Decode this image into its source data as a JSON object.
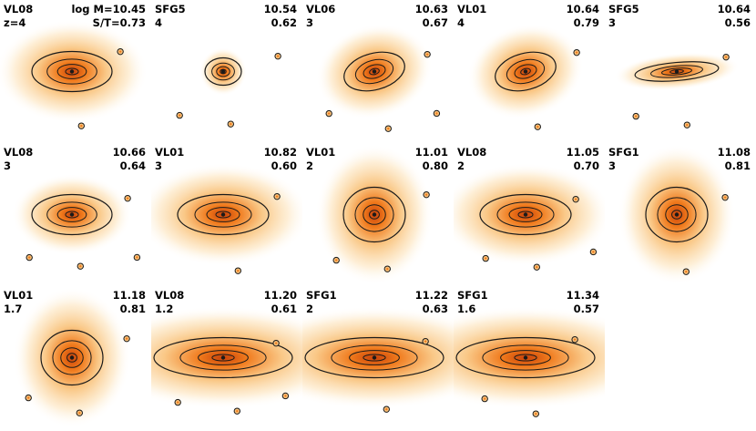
{
  "figure": {
    "panels": [
      {
        "id": "VL08",
        "param_top": "log M=10.45",
        "row2_left": "z=4",
        "row2_right": "S/T=0.73",
        "shape": "ellipse",
        "halo": "broad"
      },
      {
        "id": "SFG5",
        "param_top": "10.54",
        "row2_left": "4",
        "row2_right": "0.62",
        "shape": "compact",
        "halo": "small"
      },
      {
        "id": "VL06",
        "param_top": "10.63",
        "row2_left": "3",
        "row2_right": "0.67",
        "shape": "tilted",
        "halo": "broad"
      },
      {
        "id": "VL01",
        "param_top": "10.64",
        "row2_left": "4",
        "row2_right": "0.79",
        "shape": "tilted",
        "halo": "broad"
      },
      {
        "id": "SFG5",
        "param_top": "10.64",
        "row2_left": "3",
        "row2_right": "0.56",
        "shape": "thin-disk",
        "halo": "medium"
      },
      {
        "id": "VL08",
        "param_top": "10.66",
        "row2_left": "3",
        "row2_right": "0.64",
        "shape": "ellipse",
        "halo": "medium"
      },
      {
        "id": "VL01",
        "param_top": "10.82",
        "row2_left": "3",
        "row2_right": "0.60",
        "shape": "wide-ellipse",
        "halo": "broad"
      },
      {
        "id": "VL01",
        "param_top": "11.01",
        "row2_left": "2",
        "row2_right": "0.80",
        "shape": "round",
        "halo": "broad"
      },
      {
        "id": "VL08",
        "param_top": "11.05",
        "row2_left": "2",
        "row2_right": "0.70",
        "shape": "wide-ellipse",
        "halo": "broad"
      },
      {
        "id": "SFG1",
        "param_top": "11.08",
        "row2_left": "3",
        "row2_right": "0.81",
        "shape": "round",
        "halo": "broad"
      },
      {
        "id": "VL01",
        "param_top": "11.18",
        "row2_left": "1.7",
        "row2_right": "0.81",
        "shape": "round",
        "halo": "broad"
      },
      {
        "id": "VL08",
        "param_top": "11.20",
        "row2_left": "1.2",
        "row2_right": "0.61",
        "shape": "disk",
        "halo": "broad"
      },
      {
        "id": "SFG1",
        "param_top": "11.22",
        "row2_left": "2",
        "row2_right": "0.63",
        "shape": "disk",
        "halo": "broad"
      },
      {
        "id": "SFG1",
        "param_top": "11.34",
        "row2_left": "1.6",
        "row2_right": "0.57",
        "shape": "disk",
        "halo": "broad"
      }
    ]
  },
  "colors": {
    "halo_outer": "#fde8c6",
    "halo_mid": "#f9c27a",
    "core": "#f07a1c",
    "core_dark": "#c8420a",
    "contour": "#1a1a1a",
    "background": "#ffffff"
  }
}
